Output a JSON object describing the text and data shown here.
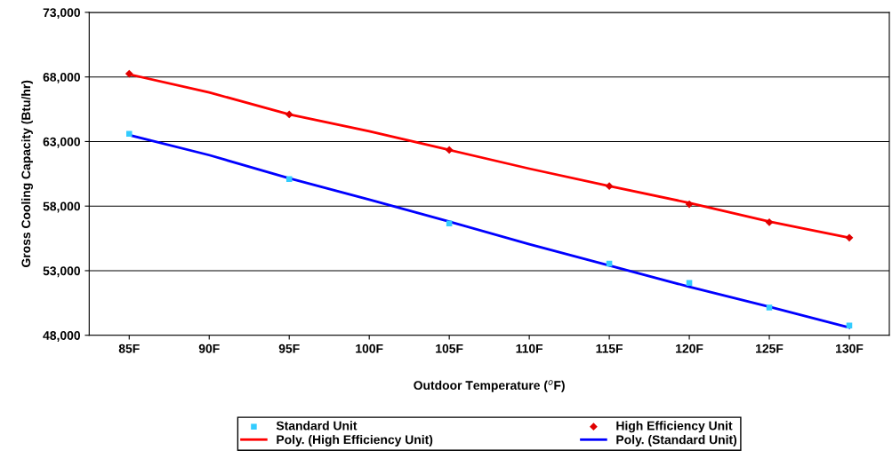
{
  "chart_data": {
    "type": "scatter",
    "xlabel": "Outdoor Temperature ($^{o}$F)",
    "ylabel": "Gross Cooling Capacity (Btu/hr)",
    "categories": [
      "85F",
      "90F",
      "95F",
      "100F",
      "105F",
      "110F",
      "115F",
      "120F",
      "125F",
      "130F"
    ],
    "series": [
      {
        "name": "Standard Unit",
        "marker": "square",
        "color": "#33ccff",
        "values": [
          63600,
          null,
          60100,
          null,
          56650,
          null,
          53550,
          52050,
          50150,
          48750
        ]
      },
      {
        "name": "High Efficiency Unit",
        "marker": "diamond",
        "color": "#e00000",
        "values": [
          68250,
          null,
          65100,
          null,
          62350,
          null,
          59550,
          58150,
          56750,
          55550
        ]
      },
      {
        "name": "Poly. (High Efficiency Unit)",
        "type": "line",
        "marker": "none",
        "color": "#ff0000",
        "values": [
          68200,
          66800,
          65100,
          63800,
          62350,
          60900,
          59550,
          58250,
          56800,
          55550
        ]
      },
      {
        "name": "Poly. (Standard Unit)",
        "type": "line",
        "marker": "none",
        "color": "#0000ff",
        "values": [
          63500,
          61950,
          60150,
          58500,
          56800,
          55050,
          53400,
          51750,
          50200,
          48600
        ]
      }
    ],
    "ylim": [
      48000,
      73000
    ],
    "yticks": [
      {
        "value": 48000,
        "label": "48,000"
      },
      {
        "value": 53000,
        "label": "53,000"
      },
      {
        "value": 58000,
        "label": "58,000"
      },
      {
        "value": 63000,
        "label": "63,000"
      },
      {
        "value": 68000,
        "label": "68,000"
      },
      {
        "value": 73000,
        "label": "73,000"
      }
    ],
    "grid": "y",
    "legend": "bottom",
    "line_style": "solid"
  }
}
